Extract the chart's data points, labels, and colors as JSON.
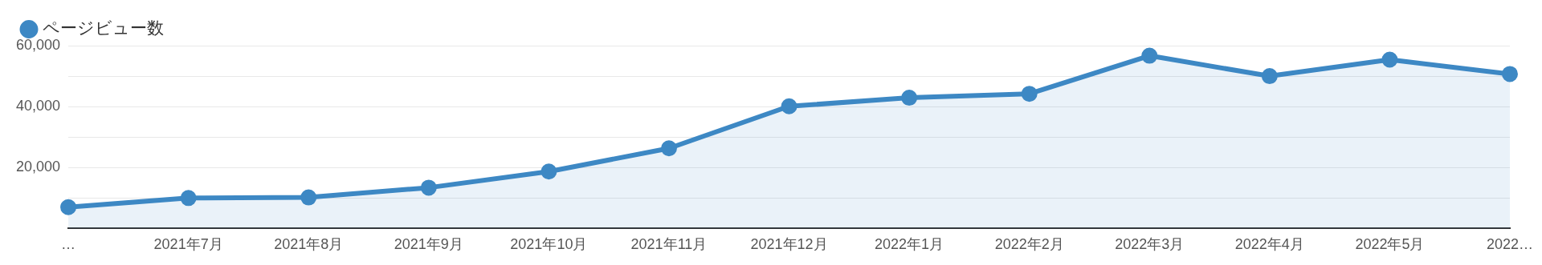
{
  "chart_data": {
    "type": "area",
    "categories": [
      "…",
      "2021年7月",
      "2021年8月",
      "2021年9月",
      "2021年10月",
      "2021年11月",
      "2021年12月",
      "2022年1月",
      "2022年2月",
      "2022年3月",
      "2022年4月",
      "2022年5月",
      "2022…"
    ],
    "series": [
      {
        "name": "ページビュー数",
        "color": "#3d88c4",
        "values": [
          7000,
          10000,
          10200,
          13400,
          18700,
          26300,
          40100,
          42900,
          44200,
          56700,
          50000,
          55400,
          50700
        ]
      }
    ],
    "ylim": [
      0,
      60000
    ],
    "yticks": [
      {
        "value": 0,
        "label": null
      },
      {
        "value": 10000,
        "label": null
      },
      {
        "value": 20000,
        "label": "20,000"
      },
      {
        "value": 30000,
        "label": null
      },
      {
        "value": 40000,
        "label": "40,000"
      },
      {
        "value": 50000,
        "label": null
      },
      {
        "value": 60000,
        "label": "60,000"
      }
    ],
    "grid": "y",
    "legend": "top left",
    "marker": "circle",
    "line_style": "solid"
  }
}
